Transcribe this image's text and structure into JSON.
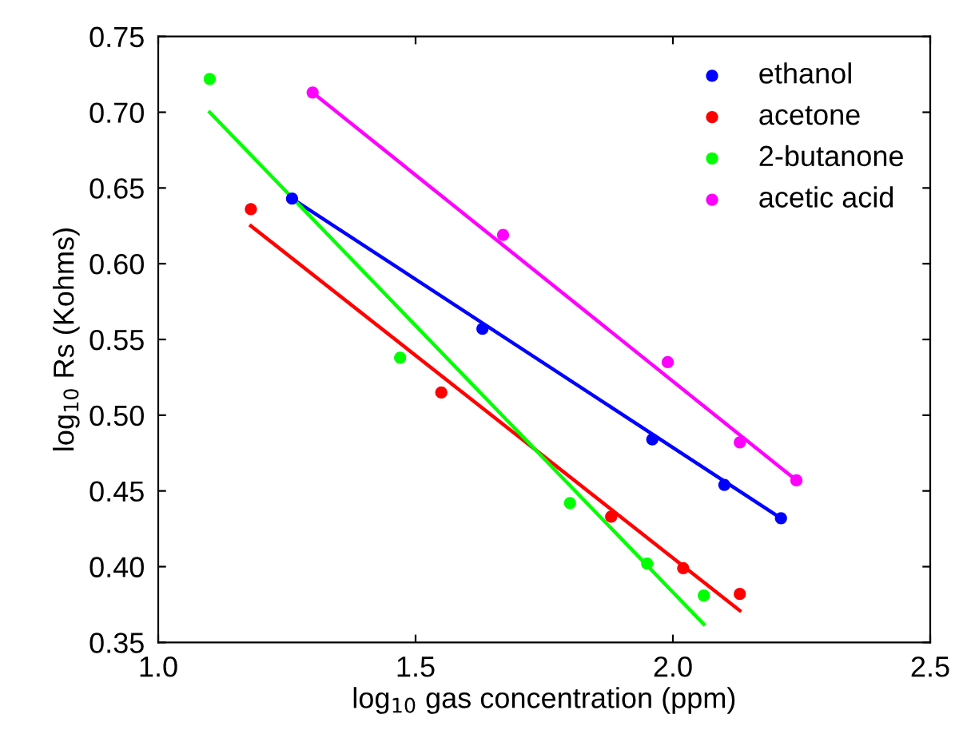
{
  "chart_data": {
    "type": "scatter",
    "xlabel": "log$_{10}$ gas concentration (ppm)",
    "ylabel": "log$_{10}$ Rs (Kohms)",
    "xlim": [
      1.0,
      2.5
    ],
    "ylim": [
      0.35,
      0.75
    ],
    "xticks": [
      {
        "value": 1.0,
        "label": "1.0"
      },
      {
        "value": 1.5,
        "label": "1.5"
      },
      {
        "value": 2.0,
        "label": "2.0"
      },
      {
        "value": 2.5,
        "label": "2.5"
      }
    ],
    "yticks": [
      {
        "value": 0.35,
        "label": "0.35"
      },
      {
        "value": 0.4,
        "label": "0.40"
      },
      {
        "value": 0.45,
        "label": "0.45"
      },
      {
        "value": 0.5,
        "label": "0.50"
      },
      {
        "value": 0.55,
        "label": "0.55"
      },
      {
        "value": 0.6,
        "label": "0.60"
      },
      {
        "value": 0.65,
        "label": "0.65"
      },
      {
        "value": 0.7,
        "label": "0.70"
      },
      {
        "value": 0.75,
        "label": "0.75"
      }
    ],
    "legend": "top right",
    "grid": false,
    "series": [
      {
        "name": "ethanol",
        "marker": "circle",
        "color": "#0000ff",
        "x": [
          1.26,
          1.63,
          1.96,
          2.1,
          2.21
        ],
        "values": [
          0.643,
          0.557,
          0.484,
          0.454,
          0.432
        ]
      },
      {
        "name": "acetone",
        "marker": "circle",
        "color": "#ff0000",
        "x": [
          1.18,
          1.55,
          1.88,
          2.02,
          2.13
        ],
        "values": [
          0.636,
          0.515,
          0.433,
          0.399,
          0.382
        ]
      },
      {
        "name": "2-butanone",
        "marker": "circle",
        "color": "#00ff00",
        "x": [
          1.1,
          1.47,
          1.8,
          1.95,
          2.06
        ],
        "values": [
          0.722,
          0.538,
          0.442,
          0.402,
          0.381
        ]
      },
      {
        "name": "acetic acid",
        "marker": "circle",
        "color": "#ff00ff",
        "x": [
          1.3,
          1.67,
          1.99,
          2.13,
          2.24
        ],
        "values": [
          0.713,
          0.619,
          0.535,
          0.482,
          0.457
        ]
      },
      {
        "type": "line",
        "marker": "none",
        "color": "#0000ff",
        "x": [
          1.26,
          2.21
        ],
        "values": [
          0.643,
          0.432
        ]
      },
      {
        "type": "line",
        "marker": "none",
        "color": "#ff0000",
        "x": [
          1.18,
          2.13
        ],
        "values": [
          0.625,
          0.371
        ]
      },
      {
        "type": "line",
        "marker": "none",
        "color": "#00ff00",
        "x": [
          1.1,
          2.06
        ],
        "values": [
          0.7,
          0.362
        ]
      },
      {
        "type": "line",
        "marker": "none",
        "color": "#ff00ff",
        "x": [
          1.3,
          2.24
        ],
        "values": [
          0.713,
          0.457
        ]
      }
    ]
  }
}
